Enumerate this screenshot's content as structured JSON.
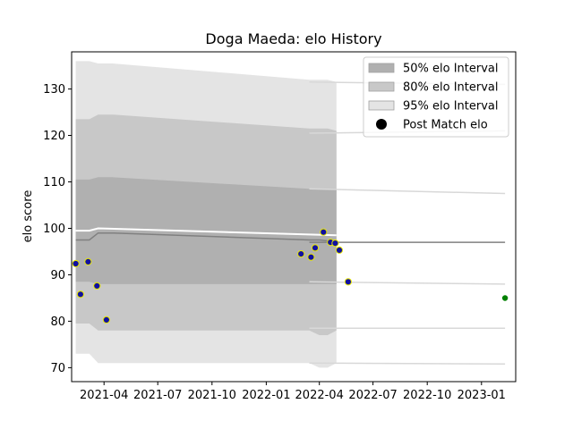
{
  "chart_data": {
    "type": "line",
    "title": "Doga Maeda: elo History",
    "xlabel": "",
    "ylabel": "elo score",
    "xlim": [
      "2021-02-05",
      "2023-02-28"
    ],
    "ylim": [
      67,
      138
    ],
    "x_ticks": [
      "2021-04",
      "2021-07",
      "2021-10",
      "2022-01",
      "2022-04",
      "2022-07",
      "2022-10",
      "2023-01"
    ],
    "y_ticks": [
      70,
      80,
      90,
      100,
      110,
      120,
      130
    ],
    "grid": false,
    "legend_position": "top-right",
    "legend": [
      {
        "label": "50% elo Interval",
        "kind": "patch",
        "color": "#b0b0b0"
      },
      {
        "label": "80% elo Interval",
        "kind": "patch",
        "color": "#c8c8c8"
      },
      {
        "label": "95% elo Interval",
        "kind": "patch",
        "color": "#e4e4e4"
      },
      {
        "label": "Post Match elo",
        "kind": "marker",
        "color": "#000000"
      }
    ],
    "colors": {
      "band50": "#b0b0b0",
      "band80": "#c8c8c8",
      "band95": "#e4e4e4",
      "mean_line": "#808080",
      "match_fill": "#1010a0",
      "match_edge": "#e8e800",
      "prediction": "#008000"
    },
    "bands_history": {
      "x": [
        "2021-02-12",
        "2021-03-07",
        "2021-03-22",
        "2021-04-15",
        "2022-03-15",
        "2022-04-01",
        "2022-04-15",
        "2022-04-30"
      ],
      "mean": [
        97.5,
        97.5,
        99.0,
        99.0,
        97.5,
        97.5,
        97.3,
        97.3
      ],
      "p50": [
        [
          88.5,
          110.5
        ],
        [
          88.5,
          110.5
        ],
        [
          88.0,
          111.0
        ],
        [
          88.0,
          111.0
        ],
        [
          88.0,
          108.5
        ],
        [
          88.0,
          108.5
        ],
        [
          88.0,
          108.5
        ],
        [
          88.0,
          108.5
        ]
      ],
      "p80": [
        [
          79.5,
          123.5
        ],
        [
          79.5,
          123.5
        ],
        [
          78.0,
          124.5
        ],
        [
          78.0,
          124.5
        ],
        [
          78.0,
          121.5
        ],
        [
          77.0,
          121.5
        ],
        [
          77.0,
          121.5
        ],
        [
          78.0,
          121.0
        ]
      ],
      "p95": [
        [
          73.0,
          136.0
        ],
        [
          73.0,
          136.0
        ],
        [
          71.0,
          135.5
        ],
        [
          71.0,
          135.5
        ],
        [
          71.0,
          132.0
        ],
        [
          70.0,
          132.0
        ],
        [
          70.0,
          132.0
        ],
        [
          71.0,
          131.5
        ]
      ]
    },
    "forecast_lines": {
      "x": [
        "2022-03-15",
        "2023-02-10"
      ],
      "mean": [
        97.0,
        97.0
      ],
      "p50": [
        [
          88.5,
          108.5
        ],
        [
          88.0,
          107.5
        ]
      ],
      "p80": [
        [
          78.5,
          120.5
        ],
        [
          78.5,
          121.0
        ]
      ],
      "p95": [
        [
          71.0,
          131.5
        ],
        [
          70.8,
          131.0
        ]
      ]
    },
    "white_line": {
      "x": [
        "2021-02-12",
        "2021-03-07",
        "2021-03-22",
        "2022-04-30"
      ],
      "values": [
        99.5,
        99.5,
        100.0,
        98.5
      ]
    },
    "post_match": [
      {
        "date": "2021-02-12",
        "elo": 92.4
      },
      {
        "date": "2021-02-20",
        "elo": 85.8
      },
      {
        "date": "2021-03-05",
        "elo": 92.8
      },
      {
        "date": "2021-03-20",
        "elo": 87.6
      },
      {
        "date": "2021-04-05",
        "elo": 80.3
      },
      {
        "date": "2022-03-01",
        "elo": 94.5
      },
      {
        "date": "2022-03-18",
        "elo": 93.8
      },
      {
        "date": "2022-03-25",
        "elo": 95.8
      },
      {
        "date": "2022-04-08",
        "elo": 99.2
      },
      {
        "date": "2022-04-20",
        "elo": 97.0
      },
      {
        "date": "2022-04-28",
        "elo": 96.8
      },
      {
        "date": "2022-05-05",
        "elo": 95.3
      },
      {
        "date": "2022-05-20",
        "elo": 88.5
      }
    ],
    "prediction_point": {
      "date": "2023-02-10",
      "elo": 85.0
    }
  }
}
